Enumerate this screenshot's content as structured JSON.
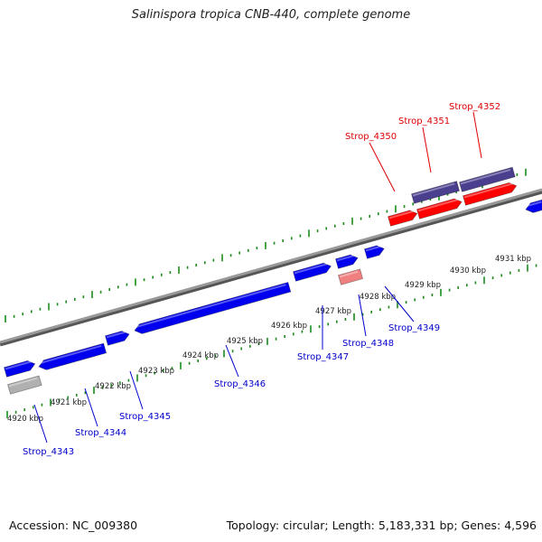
{
  "title": "Salinispora tropica CNB-440, complete genome",
  "footer": {
    "accession": "Accession: NC_009380",
    "summary": "Topology: circular; Length: 5,183,331 bp; Genes: 4,596"
  },
  "colors": {
    "forward_cds": "#0000ee",
    "reverse_cds": "#ff0000",
    "highlight_band": "#4a3f8f",
    "pink_feature": "#f08080",
    "grey_feature": "#b0b0b0",
    "axis": "#888888",
    "ticks": "#1a8a1a",
    "label_blue": "#0000cc",
    "label_red": "#dd0000"
  },
  "kbp_labels": [
    "4920 kbp",
    "4921 kbp",
    "4922 kbp",
    "4923 kbp",
    "4924 kbp",
    "4925 kbp",
    "4926 kbp",
    "4927 kbp",
    "4928 kbp",
    "4929 kbp",
    "4930 kbp",
    "4931 kbp"
  ],
  "gene_labels": [
    {
      "text": "Strop_4343",
      "color": "blue"
    },
    {
      "text": "Strop_4344",
      "color": "blue"
    },
    {
      "text": "Strop_4345",
      "color": "blue"
    },
    {
      "text": "Strop_4346",
      "color": "blue"
    },
    {
      "text": "Strop_4347",
      "color": "blue"
    },
    {
      "text": "Strop_4348",
      "color": "blue"
    },
    {
      "text": "Strop_4349",
      "color": "blue"
    },
    {
      "text": "Strop_4350",
      "color": "red"
    },
    {
      "text": "Strop_4351",
      "color": "red"
    },
    {
      "text": "Strop_4352",
      "color": "red"
    }
  ]
}
